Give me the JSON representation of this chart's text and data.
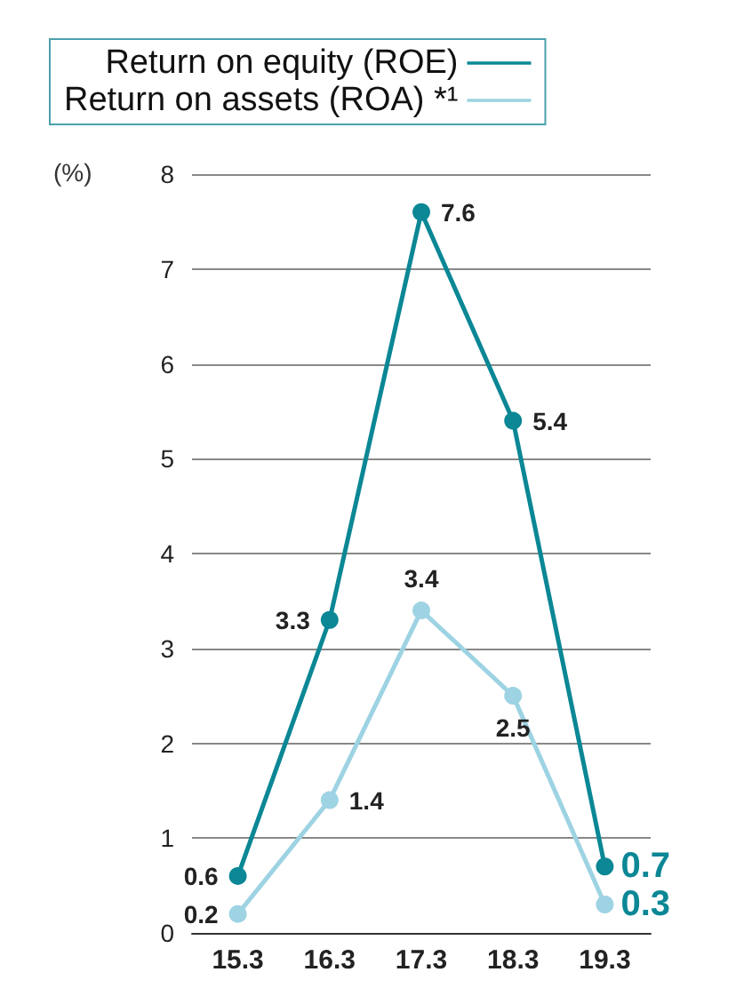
{
  "chart_data": {
    "type": "line",
    "ylabel": "(%)",
    "categories": [
      "15.3",
      "16.3",
      "17.3",
      "18.3",
      "19.3"
    ],
    "series": [
      {
        "name": "Return on equity (ROE)",
        "color": "#0b8795",
        "values": [
          0.6,
          3.3,
          7.6,
          5.4,
          0.7
        ]
      },
      {
        "name": "Return on assets (ROA) *¹",
        "color": "#9dd3e3",
        "values": [
          0.2,
          1.4,
          3.4,
          2.5,
          0.3
        ]
      }
    ],
    "ylim": [
      0,
      8
    ],
    "yticks": [
      0,
      1,
      2,
      3,
      4,
      5,
      6,
      7,
      8
    ],
    "grid": "y",
    "legend": "top",
    "marker": "circle",
    "data_labels": true
  }
}
